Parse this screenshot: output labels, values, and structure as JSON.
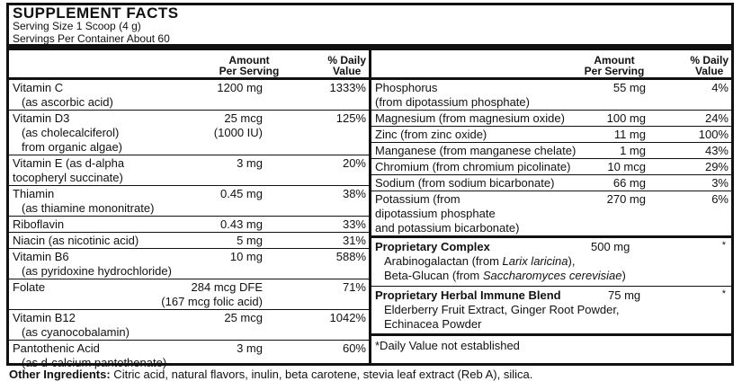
{
  "title": "SUPPLEMENT FACTS",
  "serving_size": "Serving Size 1 Scoop (4 g)",
  "servings_per_container": "Servings Per Container About 60",
  "headers": {
    "amount_1": "Amount",
    "amount_2": "Per Serving",
    "dv_1": "% Daily",
    "dv_2": "Value"
  },
  "left_rows": [
    {
      "name": [
        "Vitamin C",
        "(as ascorbic acid)"
      ],
      "amount": [
        "1200 mg"
      ],
      "dv": "1333%"
    },
    {
      "name": [
        "Vitamin D3",
        "(as cholecalciferol)",
        "from organic algae)"
      ],
      "amount": [
        "25 mcg",
        "(1000 IU)"
      ],
      "dv": "125%"
    },
    {
      "name": [
        "Vitamin E (as d-alpha",
        "tocopheryl succinate)"
      ],
      "amount": [
        "3 mg"
      ],
      "dv": "20%"
    },
    {
      "name": [
        "Thiamin",
        "(as thiamine mononitrate)"
      ],
      "amount": [
        "0.45 mg"
      ],
      "dv": "38%"
    },
    {
      "name": [
        "Riboflavin"
      ],
      "amount": [
        "0.43 mg"
      ],
      "dv": "33%"
    },
    {
      "name": [
        "Niacin (as nicotinic acid)"
      ],
      "amount": [
        "5 mg"
      ],
      "dv": "31%"
    },
    {
      "name": [
        "Vitamin B6",
        "(as pyridoxine hydrochloride)"
      ],
      "amount": [
        "10 mg"
      ],
      "dv": "588%"
    },
    {
      "name": [
        "Folate"
      ],
      "amount": [
        "284 mcg DFE",
        "(167 mcg folic acid)"
      ],
      "dv": "71%"
    },
    {
      "name": [
        "Vitamin B12",
        "(as cyanocobalamin)"
      ],
      "amount": [
        "25 mcg"
      ],
      "dv": "1042%"
    },
    {
      "name": [
        "Pantothenic Acid",
        "(as d-calcium pantothenate)"
      ],
      "amount": [
        "3 mg"
      ],
      "dv": "60%"
    }
  ],
  "right_rows": [
    {
      "name": [
        "Phosphorus",
        "(from dipotassium phosphate)"
      ],
      "amount": [
        "55 mg"
      ],
      "dv": "4%"
    },
    {
      "name": [
        "Magnesium (from magnesium oxide)"
      ],
      "amount": [
        "100 mg"
      ],
      "dv": "24%"
    },
    {
      "name": [
        "Zinc (from zinc oxide)"
      ],
      "amount": [
        "11 mg"
      ],
      "dv": "100%"
    },
    {
      "name": [
        "Manganese (from manganese chelate)"
      ],
      "amount": [
        "1 mg"
      ],
      "dv": "43%"
    },
    {
      "name": [
        "Chromium (from chromium picolinate)"
      ],
      "amount": [
        "10 mcg"
      ],
      "dv": "29%"
    },
    {
      "name": [
        "Sodium (from sodium bicarbonate)"
      ],
      "amount": [
        "66 mg"
      ],
      "dv": "3%"
    },
    {
      "name": [
        "Potassium (from",
        "dipotassium phosphate",
        "and potassium bicarbonate)"
      ],
      "amount": [
        "270 mg"
      ],
      "dv": "6%"
    }
  ],
  "proprietary_complex": {
    "name": "Proprietary Complex",
    "amount": "500 mg",
    "dv": "*",
    "line1_a": "Arabinogalactan (from ",
    "line1_i": "Larix laricina",
    "line1_b": "),",
    "line2_a": "Beta-Glucan (from ",
    "line2_i": "Saccharomyces cerevisiae",
    "line2_b": ")"
  },
  "herbal_blend": {
    "name": "Proprietary Herbal Immune Blend",
    "amount": "75 mg",
    "dv": "*",
    "line1": "Elderberry Fruit Extract, Ginger Root Powder,",
    "line2": "Echinacea Powder"
  },
  "footnote": "*Daily Value not established",
  "other_ingredients": {
    "label": "Other Ingredients:",
    "text": " Citric acid, natural flavors, inulin, beta carotene, stevia leaf extract (Reb A), silica."
  }
}
